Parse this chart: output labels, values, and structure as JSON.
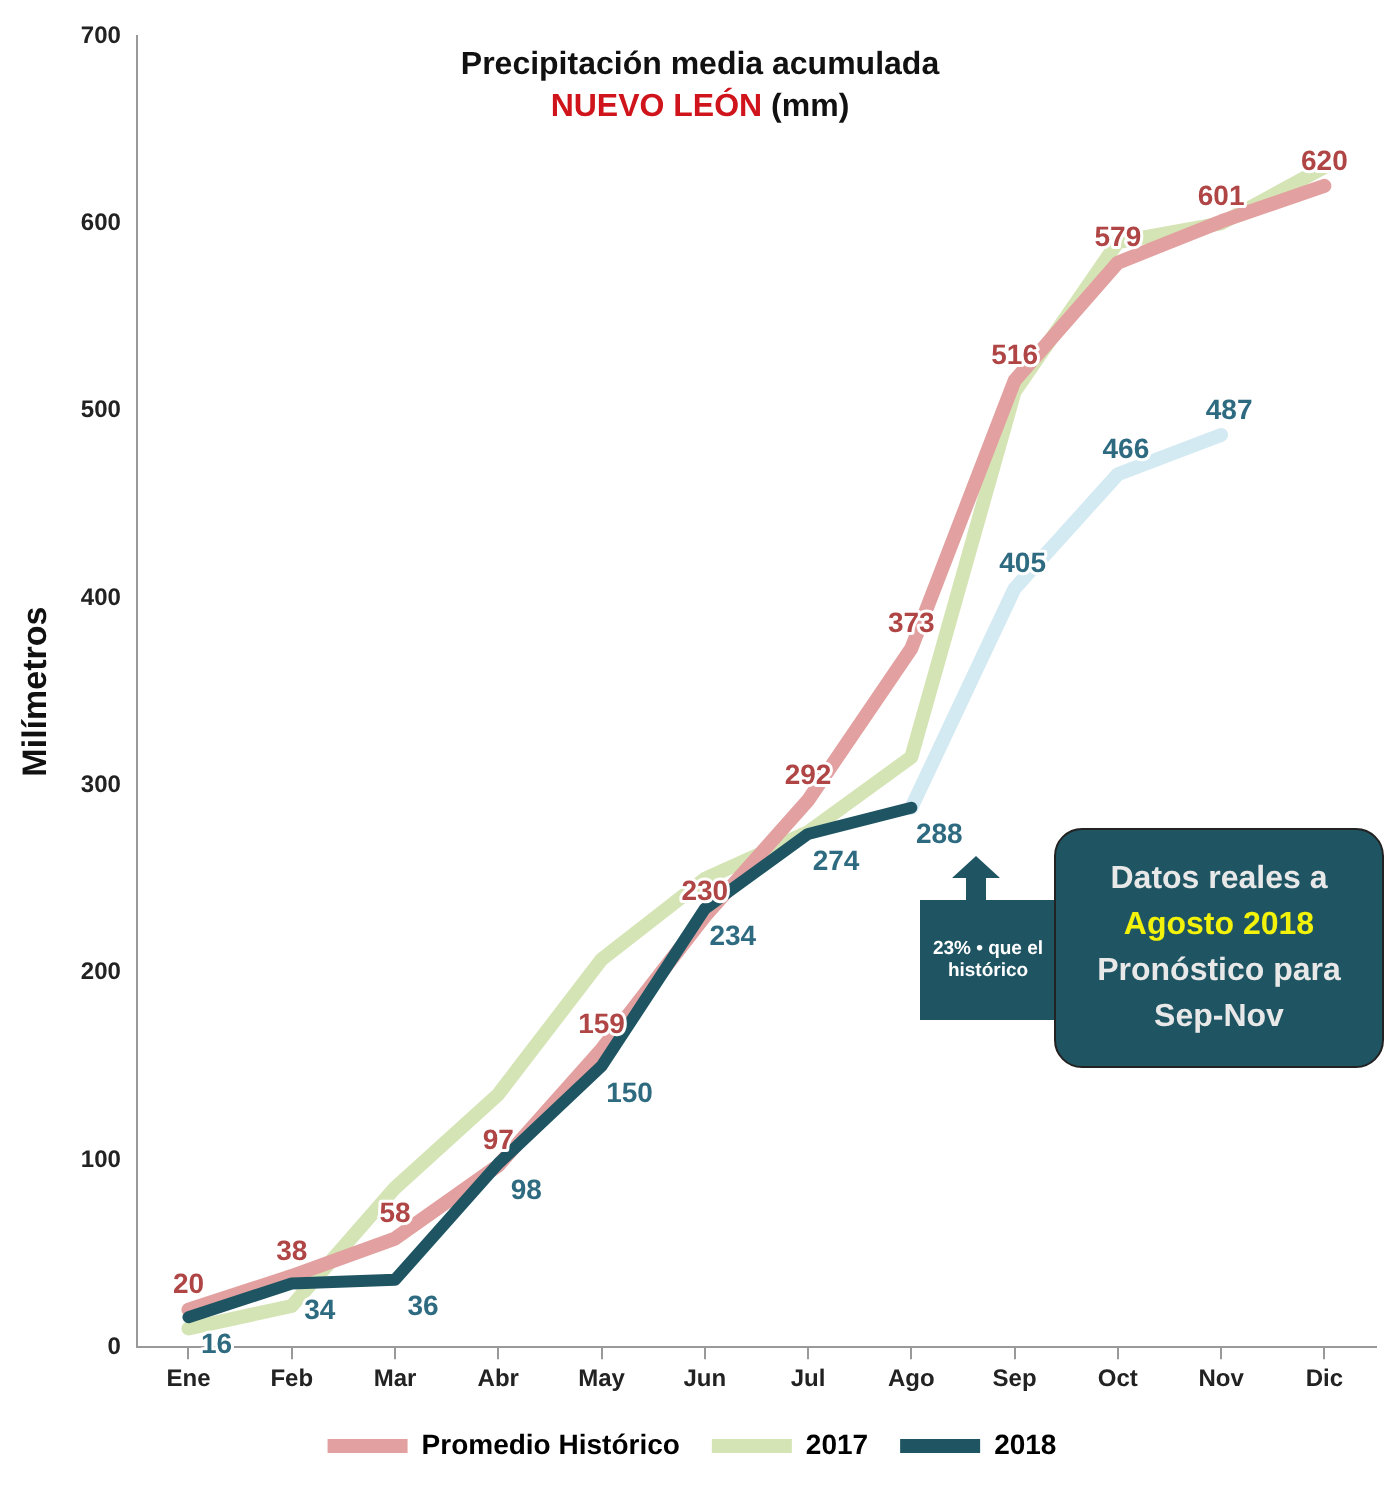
{
  "chart_data": {
    "type": "line",
    "title": "Precipitación media acumulada",
    "subtitle": "NUEVO LEÓN (mm)",
    "ylabel": "Milímetros",
    "categories": [
      "Ene",
      "Feb",
      "Mar",
      "Abr",
      "May",
      "Jun",
      "Jul",
      "Ago",
      "Sep",
      "Oct",
      "Nov",
      "Dic"
    ],
    "series": [
      {
        "name": "Promedio Histórico",
        "color": "#e3a0a0",
        "values": [
          20,
          38,
          58,
          97,
          159,
          230,
          292,
          373,
          516,
          579,
          601,
          620
        ],
        "value_labels": [
          "20",
          "38",
          "58",
          "97",
          "159",
          "230",
          "292",
          "373",
          "516",
          "579",
          "601",
          "620"
        ]
      },
      {
        "name": "2017",
        "color": "#d5e4b5",
        "values": [
          10,
          22,
          85,
          135,
          207,
          250,
          275,
          315,
          510,
          590,
          600,
          630
        ]
      },
      {
        "name": "2018",
        "color": "#1f5563",
        "values": [
          16,
          34,
          36,
          98,
          150,
          234,
          274,
          288,
          null,
          null,
          null,
          null
        ],
        "value_labels": [
          "16",
          "34",
          "36",
          "98",
          "150",
          "234",
          "274",
          "288",
          null,
          null,
          null,
          null
        ]
      },
      {
        "color": "#d4eaf2",
        "values": [
          null,
          null,
          null,
          null,
          null,
          null,
          null,
          288,
          405,
          466,
          487,
          null
        ],
        "value_labels": [
          null,
          null,
          null,
          null,
          null,
          null,
          null,
          null,
          "405",
          "466",
          "487",
          null
        ]
      }
    ],
    "ylim": [
      0,
      700
    ],
    "yticks": [
      0,
      100,
      200,
      300,
      400,
      500,
      600,
      700
    ],
    "grid": false,
    "legend": "bottom",
    "marker": "none",
    "line_style": "solid",
    "annotations": [
      "23% • que el histórico",
      "Datos reales a",
      "Agosto 2018",
      "Pronóstico para Sep-Nov"
    ]
  }
}
